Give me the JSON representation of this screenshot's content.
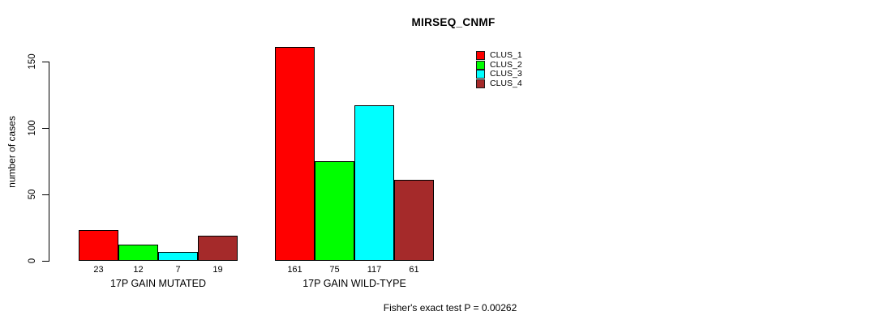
{
  "chart_data": {
    "type": "bar",
    "title": "MIRSEQ_CNMF",
    "ylabel": "number of cases",
    "xlabel": "",
    "categories": [
      "17P GAIN MUTATED",
      "17P GAIN WILD-TYPE"
    ],
    "series": [
      {
        "name": "CLUS_1",
        "color": "#FF0000",
        "values": [
          23,
          161
        ]
      },
      {
        "name": "CLUS_2",
        "color": "#00FF00",
        "values": [
          12,
          75
        ]
      },
      {
        "name": "CLUS_3",
        "color": "#00FFFF",
        "values": [
          7,
          117
        ]
      },
      {
        "name": "CLUS_4",
        "color": "#A52A2A",
        "values": [
          19,
          61
        ]
      }
    ],
    "yticks": [
      0,
      50,
      100,
      150
    ],
    "ylim": [
      0,
      165
    ],
    "grid": false,
    "show_values_under_bars": true,
    "legend_position": "top-right",
    "legend_entries": [
      "CLUS_1",
      "CLUS_2",
      "CLUS_3",
      "CLUS_4"
    ],
    "annotation": "Fisher's exact test P = 0.00262"
  }
}
